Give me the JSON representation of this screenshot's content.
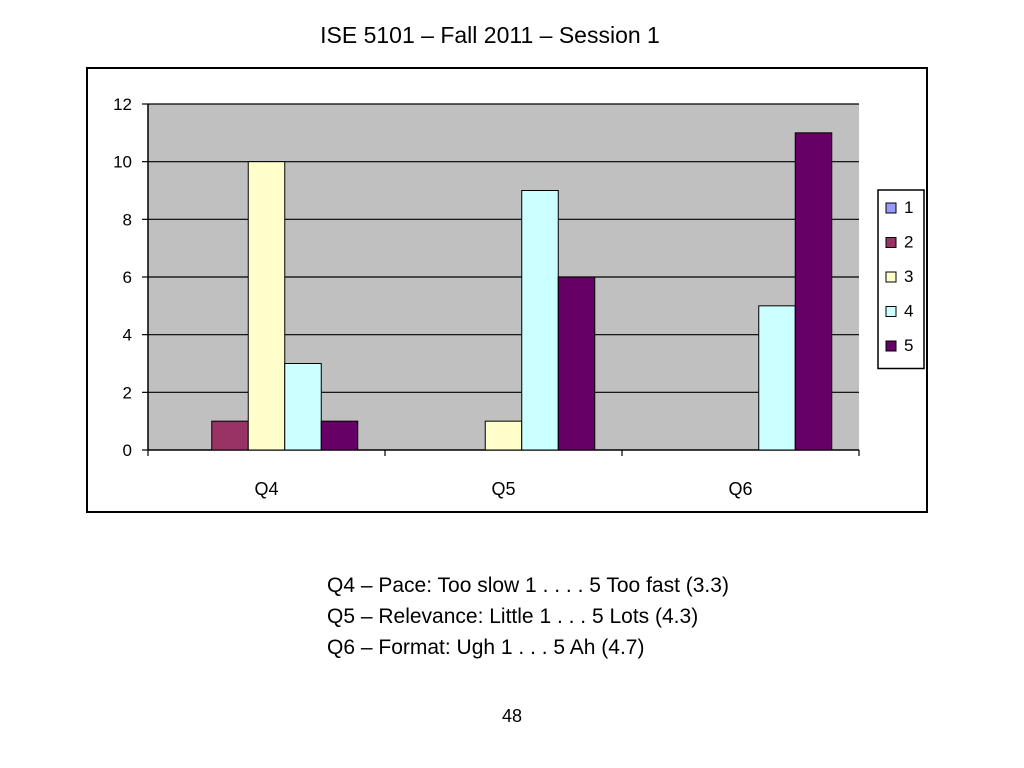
{
  "slide": {
    "title": "ISE 5101 – Fall 2011 – Session 1",
    "notes": [
      "Q4 – Pace: Too slow 1 . . . . 5 Too fast (3.3)",
      "Q5 – Relevance: Little 1 . . . 5 Lots (4.3)",
      "Q6 – Format: Ugh 1 . . . 5 Ah (4.7)"
    ],
    "page_number": "48"
  },
  "chart_data": {
    "type": "bar",
    "categories": [
      "Q4",
      "Q5",
      "Q6"
    ],
    "series": [
      {
        "name": "1",
        "color": "#9999ff",
        "values": [
          0,
          0,
          0
        ]
      },
      {
        "name": "2",
        "color": "#993366",
        "values": [
          1,
          0,
          0
        ]
      },
      {
        "name": "3",
        "color": "#ffffcc",
        "values": [
          10,
          1,
          0
        ]
      },
      {
        "name": "4",
        "color": "#ccffff",
        "values": [
          3,
          9,
          5
        ]
      },
      {
        "name": "5",
        "color": "#660066",
        "values": [
          1,
          6,
          11
        ]
      }
    ],
    "ylim": [
      0,
      12
    ],
    "yticks": [
      "0",
      "2",
      "4",
      "6",
      "8",
      "10",
      "12"
    ],
    "xlabel": "",
    "ylabel": "",
    "grid": true,
    "plot_background": "#c0c0c0",
    "legend_position": "right"
  }
}
